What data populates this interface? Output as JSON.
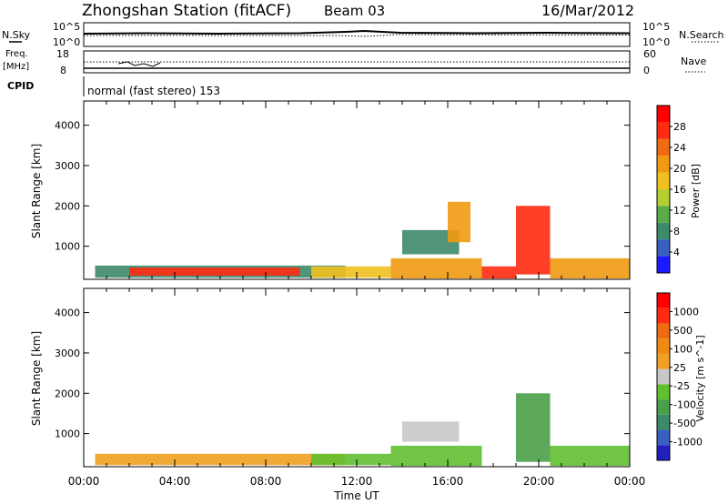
{
  "header": {
    "station": "Zhongshan Station (fitACF)",
    "beam": "Beam 03",
    "date": "16/Mar/2012"
  },
  "top_panels": {
    "nsky_label": "N.Sky",
    "nsky_ticks": [
      "10^5",
      "10^0"
    ],
    "nsearch_label": "N.Search",
    "nsearch_ticks": [
      "10^5",
      "10^0"
    ],
    "freq_label": "Freq.",
    "freq_unit": "[MHz]",
    "freq_ticks": [
      "18",
      "8"
    ],
    "nave_label": "Nave",
    "nave_ticks": [
      "60",
      "0"
    ],
    "cpid_label": "CPID",
    "cpid_text": "normal (fast stereo) 153"
  },
  "chart_data": [
    {
      "type": "heatmap",
      "title": "",
      "ylabel": "Slant Range [km]",
      "xlabel": "",
      "xlim": [
        0,
        24
      ],
      "ylim": [
        180,
        4600
      ],
      "x_ticks": [
        "00:00",
        "04:00",
        "08:00",
        "12:00",
        "16:00",
        "20:00",
        "00:00"
      ],
      "y_ticks": [
        "1000",
        "2000",
        "3000",
        "4000"
      ],
      "colorbar": {
        "label": "Power [dB]",
        "ticks": [
          "4",
          "8",
          "12",
          "16",
          "20",
          "24",
          "28"
        ],
        "range": [
          0,
          30
        ],
        "colors": [
          "#1a1aff",
          "#3a5fc0",
          "#3d8a6a",
          "#5aac4a",
          "#b6cf30",
          "#f0c020",
          "#ef9a10",
          "#f06a10",
          "#ff2a10",
          "#ff0000"
        ]
      },
      "regions": [
        {
          "t0": 0.5,
          "t1": 11.5,
          "r0": 220,
          "r1": 520,
          "value": 8
        },
        {
          "t0": 2.0,
          "t1": 9.5,
          "r0": 270,
          "r1": 470,
          "value": 26
        },
        {
          "t0": 10.0,
          "t1": 13.5,
          "r0": 220,
          "r1": 500,
          "value": 16
        },
        {
          "t0": 13.5,
          "t1": 17.5,
          "r0": 200,
          "r1": 700,
          "value": 18
        },
        {
          "t0": 14.0,
          "t1": 16.5,
          "r0": 800,
          "r1": 1400,
          "value": 6
        },
        {
          "t0": 16.0,
          "t1": 17.0,
          "r0": 1100,
          "r1": 2100,
          "value": 20
        },
        {
          "t0": 17.5,
          "t1": 19.0,
          "r0": 200,
          "r1": 500,
          "value": 26
        },
        {
          "t0": 19.0,
          "t1": 20.5,
          "r0": 300,
          "r1": 2000,
          "value": 24
        },
        {
          "t0": 20.5,
          "t1": 24.0,
          "r0": 200,
          "r1": 700,
          "value": 18
        }
      ]
    },
    {
      "type": "heatmap",
      "title": "",
      "ylabel": "Slant Range [km]",
      "xlabel": "Time UT",
      "xlim": [
        0,
        24
      ],
      "ylim": [
        180,
        4600
      ],
      "x_ticks": [
        "00:00",
        "04:00",
        "08:00",
        "12:00",
        "16:00",
        "20:00",
        "00:00"
      ],
      "y_ticks": [
        "1000",
        "2000",
        "3000",
        "4000"
      ],
      "colorbar": {
        "label": "Velocity [m s^-1]",
        "ticks": [
          "1000",
          "500",
          "100",
          "25",
          "-25",
          "-100",
          "-500",
          "-1000"
        ],
        "range": [
          -1000,
          1000
        ],
        "colors": [
          "#2020c0",
          "#3a5fc0",
          "#3d8a6a",
          "#4aa04a",
          "#60c030",
          "#c8c8c8",
          "#f0a020",
          "#f08a10",
          "#f06a10",
          "#ff2a10",
          "#ff0000"
        ]
      },
      "regions": [
        {
          "t0": 0.5,
          "t1": 11.5,
          "r0": 220,
          "r1": 500,
          "value": 100
        },
        {
          "t0": 10.0,
          "t1": 13.5,
          "r0": 220,
          "r1": 500,
          "value": -200
        },
        {
          "t0": 14.0,
          "t1": 16.5,
          "r0": 800,
          "r1": 1300,
          "value": 0
        },
        {
          "t0": 13.5,
          "t1": 17.5,
          "r0": 200,
          "r1": 700,
          "value": -150
        },
        {
          "t0": 19.0,
          "t1": 20.5,
          "r0": 300,
          "r1": 2000,
          "value": -300
        },
        {
          "t0": 20.5,
          "t1": 24.0,
          "r0": 200,
          "r1": 700,
          "value": -150
        }
      ]
    }
  ]
}
